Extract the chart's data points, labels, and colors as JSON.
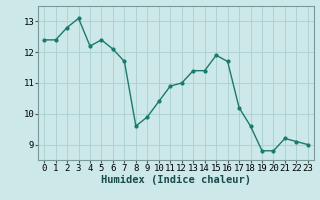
{
  "x": [
    0,
    1,
    2,
    3,
    4,
    5,
    6,
    7,
    8,
    9,
    10,
    11,
    12,
    13,
    14,
    15,
    16,
    17,
    18,
    19,
    20,
    21,
    22,
    23
  ],
  "y": [
    12.4,
    12.4,
    12.8,
    13.1,
    12.2,
    12.4,
    12.1,
    11.7,
    9.6,
    9.9,
    10.4,
    10.9,
    11.0,
    11.4,
    11.4,
    11.9,
    11.7,
    10.2,
    9.6,
    8.8,
    8.8,
    9.2,
    9.1,
    9.0
  ],
  "line_color": "#1a7a6e",
  "marker": "o",
  "markersize": 2.0,
  "linewidth": 1.0,
  "bg_color": "#cce8e8",
  "grid_color": "#aacfcf",
  "xlabel": "Humidex (Indice chaleur)",
  "xlabel_fontsize": 7.5,
  "tick_fontsize": 6.5,
  "xlim": [
    -0.5,
    23.5
  ],
  "ylim": [
    8.5,
    13.5
  ],
  "yticks": [
    9,
    10,
    11,
    12,
    13
  ],
  "xticks": [
    0,
    1,
    2,
    3,
    4,
    5,
    6,
    7,
    8,
    9,
    10,
    11,
    12,
    13,
    14,
    15,
    16,
    17,
    18,
    19,
    20,
    21,
    22,
    23
  ]
}
